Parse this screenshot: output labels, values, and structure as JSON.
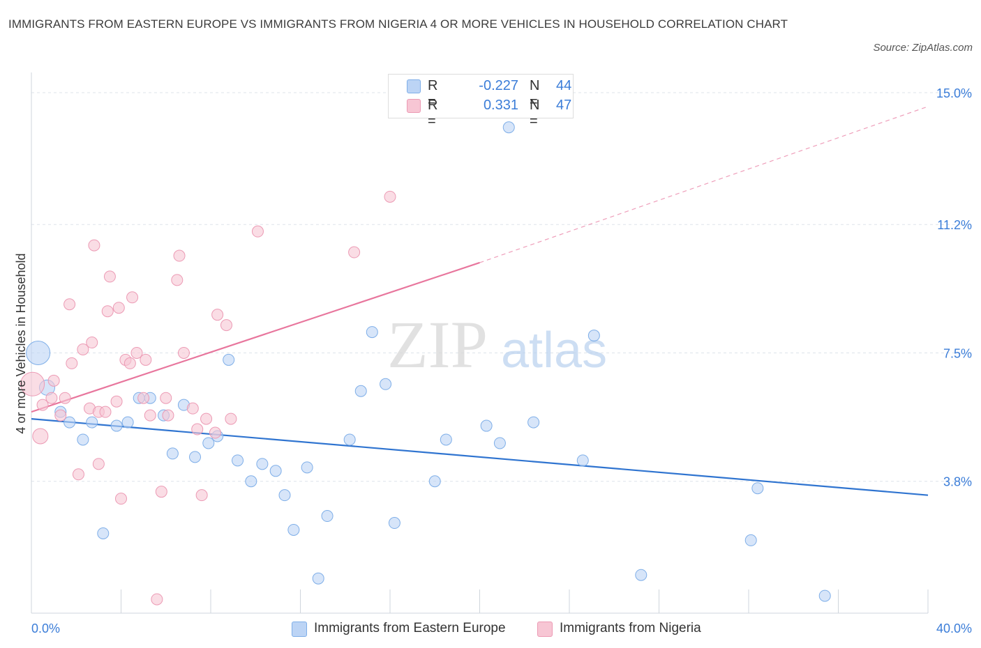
{
  "title": "IMMIGRANTS FROM EASTERN EUROPE VS IMMIGRANTS FROM NIGERIA 4 OR MORE VEHICLES IN HOUSEHOLD CORRELATION CHART",
  "source": "Source: ZipAtlas.com",
  "watermark": {
    "zip": "ZIP",
    "atlas": "atlas"
  },
  "legend_top": {
    "rows": [
      {
        "r_label": "R =",
        "r_value": "-0.227",
        "n_label": "N =",
        "n_value": "44",
        "color": "#bcd4f5"
      },
      {
        "r_label": "R =",
        "r_value": "0.331",
        "n_label": "N =",
        "n_value": "47",
        "color": "#f7c6d4"
      }
    ]
  },
  "legend_bottom": [
    {
      "label": "Immigrants from Eastern Europe",
      "color": "#bcd4f5"
    },
    {
      "label": "Immigrants from Nigeria",
      "color": "#f7c6d4"
    }
  ],
  "colors": {
    "blue_fill": "#bcd4f5",
    "blue_stroke": "#7eaee8",
    "blue_line": "#2f74d0",
    "pink_fill": "#f7c6d4",
    "pink_stroke": "#ec9ab4",
    "pink_line": "#e8769d",
    "tick_label": "#3b7dd8",
    "grid": "#dde3ea"
  },
  "chart_data": {
    "type": "scatter",
    "xlabel": "",
    "ylabel": "4 or more Vehicles in Household",
    "xlim": [
      0,
      40
    ],
    "ylim": [
      0,
      15.3
    ],
    "x_tick_labels": [
      {
        "value": 0,
        "label": "0.0%"
      },
      {
        "value": 40,
        "label": "40.0%"
      }
    ],
    "y_tick_labels": [
      {
        "value": 3.8,
        "label": "3.8%"
      },
      {
        "value": 7.5,
        "label": "7.5%"
      },
      {
        "value": 11.2,
        "label": "11.2%"
      },
      {
        "value": 15.0,
        "label": "15.0%"
      }
    ],
    "series": [
      {
        "name": "Immigrants from Eastern Europe",
        "color": "#bcd4f5",
        "points": [
          {
            "x": 0.3,
            "y": 7.5,
            "s": 3
          },
          {
            "x": 0.7,
            "y": 6.5,
            "s": 2
          },
          {
            "x": 1.3,
            "y": 5.8,
            "s": 1
          },
          {
            "x": 1.7,
            "y": 5.5,
            "s": 1
          },
          {
            "x": 2.3,
            "y": 5.0,
            "s": 1
          },
          {
            "x": 2.7,
            "y": 5.5,
            "s": 1
          },
          {
            "x": 3.2,
            "y": 2.3,
            "s": 1
          },
          {
            "x": 3.8,
            "y": 5.4,
            "s": 1
          },
          {
            "x": 4.3,
            "y": 5.5,
            "s": 1
          },
          {
            "x": 4.8,
            "y": 6.2,
            "s": 1
          },
          {
            "x": 5.3,
            "y": 6.2,
            "s": 1
          },
          {
            "x": 5.9,
            "y": 5.7,
            "s": 1
          },
          {
            "x": 6.3,
            "y": 4.6,
            "s": 1
          },
          {
            "x": 6.8,
            "y": 6.0,
            "s": 1
          },
          {
            "x": 7.3,
            "y": 4.5,
            "s": 1
          },
          {
            "x": 7.9,
            "y": 4.9,
            "s": 1
          },
          {
            "x": 8.3,
            "y": 5.1,
            "s": 1
          },
          {
            "x": 8.8,
            "y": 7.3,
            "s": 1
          },
          {
            "x": 9.2,
            "y": 4.4,
            "s": 1
          },
          {
            "x": 9.8,
            "y": 3.8,
            "s": 1
          },
          {
            "x": 10.3,
            "y": 4.3,
            "s": 1
          },
          {
            "x": 10.9,
            "y": 4.1,
            "s": 1
          },
          {
            "x": 11.3,
            "y": 3.4,
            "s": 1
          },
          {
            "x": 11.7,
            "y": 2.4,
            "s": 1
          },
          {
            "x": 12.3,
            "y": 4.2,
            "s": 1
          },
          {
            "x": 12.8,
            "y": 1.0,
            "s": 1
          },
          {
            "x": 13.2,
            "y": 2.8,
            "s": 1
          },
          {
            "x": 14.2,
            "y": 5.0,
            "s": 1
          },
          {
            "x": 14.7,
            "y": 6.4,
            "s": 1
          },
          {
            "x": 15.2,
            "y": 8.1,
            "s": 1
          },
          {
            "x": 15.8,
            "y": 6.6,
            "s": 1
          },
          {
            "x": 16.2,
            "y": 2.6,
            "s": 1
          },
          {
            "x": 18.0,
            "y": 3.8,
            "s": 1
          },
          {
            "x": 18.5,
            "y": 5.0,
            "s": 1
          },
          {
            "x": 20.3,
            "y": 5.4,
            "s": 1
          },
          {
            "x": 20.9,
            "y": 4.9,
            "s": 1
          },
          {
            "x": 21.3,
            "y": 14.0,
            "s": 1
          },
          {
            "x": 22.4,
            "y": 5.5,
            "s": 1
          },
          {
            "x": 24.6,
            "y": 4.4,
            "s": 1
          },
          {
            "x": 25.1,
            "y": 8.0,
            "s": 1
          },
          {
            "x": 27.2,
            "y": 1.1,
            "s": 1
          },
          {
            "x": 32.4,
            "y": 3.6,
            "s": 1
          },
          {
            "x": 32.1,
            "y": 2.1,
            "s": 1
          },
          {
            "x": 35.4,
            "y": 0.5,
            "s": 1
          }
        ]
      },
      {
        "name": "Immigrants from Nigeria",
        "color": "#f7c6d4",
        "points": [
          {
            "x": 0.05,
            "y": 6.6,
            "s": 3
          },
          {
            "x": 0.4,
            "y": 5.1,
            "s": 2
          },
          {
            "x": 0.5,
            "y": 6.0,
            "s": 1
          },
          {
            "x": 0.9,
            "y": 6.2,
            "s": 1
          },
          {
            "x": 1.0,
            "y": 6.7,
            "s": 1
          },
          {
            "x": 1.3,
            "y": 5.7,
            "s": 1
          },
          {
            "x": 1.5,
            "y": 6.2,
            "s": 1
          },
          {
            "x": 1.8,
            "y": 7.2,
            "s": 1
          },
          {
            "x": 1.7,
            "y": 8.9,
            "s": 1
          },
          {
            "x": 2.1,
            "y": 4.0,
            "s": 1
          },
          {
            "x": 2.3,
            "y": 7.6,
            "s": 1
          },
          {
            "x": 2.6,
            "y": 5.9,
            "s": 1
          },
          {
            "x": 2.7,
            "y": 7.8,
            "s": 1
          },
          {
            "x": 2.8,
            "y": 10.6,
            "s": 1
          },
          {
            "x": 3.0,
            "y": 5.8,
            "s": 1
          },
          {
            "x": 3.0,
            "y": 4.3,
            "s": 1
          },
          {
            "x": 3.3,
            "y": 5.8,
            "s": 1
          },
          {
            "x": 3.4,
            "y": 8.7,
            "s": 1
          },
          {
            "x": 3.5,
            "y": 9.7,
            "s": 1
          },
          {
            "x": 3.8,
            "y": 6.1,
            "s": 1
          },
          {
            "x": 3.9,
            "y": 8.8,
            "s": 1
          },
          {
            "x": 4.0,
            "y": 3.3,
            "s": 1
          },
          {
            "x": 4.2,
            "y": 7.3,
            "s": 1
          },
          {
            "x": 4.4,
            "y": 7.2,
            "s": 1
          },
          {
            "x": 4.5,
            "y": 9.1,
            "s": 1
          },
          {
            "x": 4.7,
            "y": 7.5,
            "s": 1
          },
          {
            "x": 5.0,
            "y": 6.2,
            "s": 1
          },
          {
            "x": 5.1,
            "y": 7.3,
            "s": 1
          },
          {
            "x": 5.3,
            "y": 5.7,
            "s": 1
          },
          {
            "x": 5.6,
            "y": 0.4,
            "s": 1
          },
          {
            "x": 5.8,
            "y": 3.5,
            "s": 1
          },
          {
            "x": 6.1,
            "y": 5.7,
            "s": 1
          },
          {
            "x": 6.5,
            "y": 9.6,
            "s": 1
          },
          {
            "x": 6.6,
            "y": 10.3,
            "s": 1
          },
          {
            "x": 6.8,
            "y": 7.5,
            "s": 1
          },
          {
            "x": 7.2,
            "y": 5.9,
            "s": 1
          },
          {
            "x": 7.4,
            "y": 5.3,
            "s": 1
          },
          {
            "x": 7.6,
            "y": 3.4,
            "s": 1
          },
          {
            "x": 7.8,
            "y": 5.6,
            "s": 1
          },
          {
            "x": 8.2,
            "y": 5.2,
            "s": 1
          },
          {
            "x": 8.3,
            "y": 8.6,
            "s": 1
          },
          {
            "x": 8.7,
            "y": 8.3,
            "s": 1
          },
          {
            "x": 8.9,
            "y": 5.6,
            "s": 1
          },
          {
            "x": 10.1,
            "y": 11.0,
            "s": 1
          },
          {
            "x": 14.4,
            "y": 10.4,
            "s": 1
          },
          {
            "x": 16.0,
            "y": 12.0,
            "s": 1
          },
          {
            "x": 6.0,
            "y": 6.2,
            "s": 1
          }
        ]
      }
    ],
    "trend_lines": [
      {
        "series": "Immigrants from Eastern Europe",
        "x0": 0,
        "y0": 5.6,
        "x1": 40,
        "y1": 3.4
      },
      {
        "series": "Immigrants from Nigeria",
        "x0": 0,
        "y0": 5.8,
        "x1": 20,
        "y1": 10.1,
        "extends_dashed_to": {
          "x": 40,
          "y": 14.6
        }
      }
    ]
  }
}
